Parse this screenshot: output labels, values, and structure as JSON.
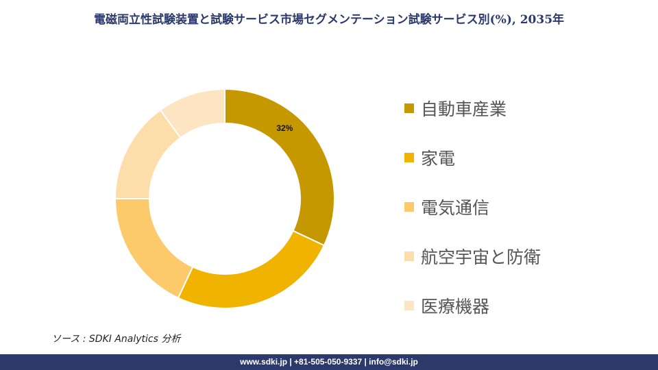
{
  "title": "電磁両立性試験装置と試験サービス市場セグメンテーション試験サービス別(%), 2035年",
  "chart_data": {
    "type": "pie",
    "donut": true,
    "categories": [
      "自動車産業",
      "家電",
      "電気通信",
      "航空宇宙と防衛",
      "医療機器"
    ],
    "values": [
      32,
      25,
      18,
      15,
      10
    ],
    "colors": [
      "#c59800",
      "#f0b400",
      "#fcc96b",
      "#fdddaa",
      "#fde5c3"
    ],
    "data_labels": [
      "32%",
      "",
      "",
      "",
      ""
    ],
    "legend_position": "right"
  },
  "source": "ソース : SDKI Analytics 分析",
  "footer": "www.sdki.jp | +81-505-050-9337 | info@sdki.jp"
}
